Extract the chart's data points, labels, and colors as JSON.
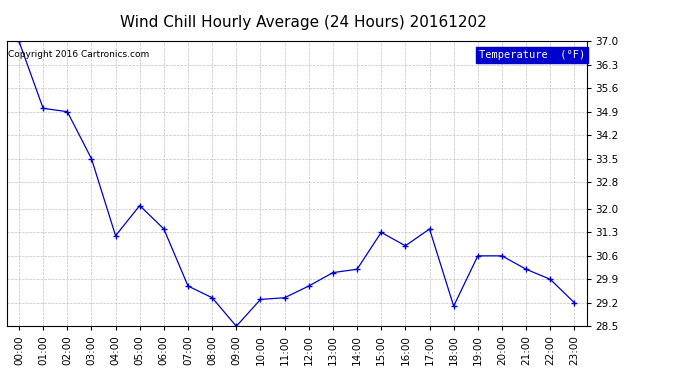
{
  "title": "Wind Chill Hourly Average (24 Hours) 20161202",
  "copyright": "Copyright 2016 Cartronics.com",
  "legend_label": "Temperature  (°F)",
  "hours": [
    "00:00",
    "01:00",
    "02:00",
    "03:00",
    "04:00",
    "05:00",
    "06:00",
    "07:00",
    "08:00",
    "09:00",
    "10:00",
    "11:00",
    "12:00",
    "13:00",
    "14:00",
    "15:00",
    "16:00",
    "17:00",
    "18:00",
    "19:00",
    "20:00",
    "21:00",
    "22:00",
    "23:00"
  ],
  "values": [
    37.0,
    35.0,
    34.9,
    33.5,
    31.2,
    32.1,
    31.4,
    29.7,
    29.35,
    28.5,
    29.3,
    29.35,
    29.7,
    30.1,
    30.2,
    31.3,
    30.9,
    31.4,
    29.1,
    30.6,
    30.6,
    30.2,
    29.9,
    29.2
  ],
  "ylim_min": 28.5,
  "ylim_max": 37.0,
  "yticks": [
    37.0,
    36.3,
    35.6,
    34.9,
    34.2,
    33.5,
    32.8,
    32.0,
    31.3,
    30.6,
    29.9,
    29.2,
    28.5
  ],
  "line_color": "#0000cc",
  "marker": "+",
  "marker_color": "#0000cc",
  "bg_color": "#ffffff",
  "grid_color": "#b0b0b0",
  "legend_bg": "#0000cc",
  "legend_text_color": "#ffffff",
  "title_fontsize": 11,
  "tick_fontsize": 7.5,
  "copyright_fontsize": 6.5
}
